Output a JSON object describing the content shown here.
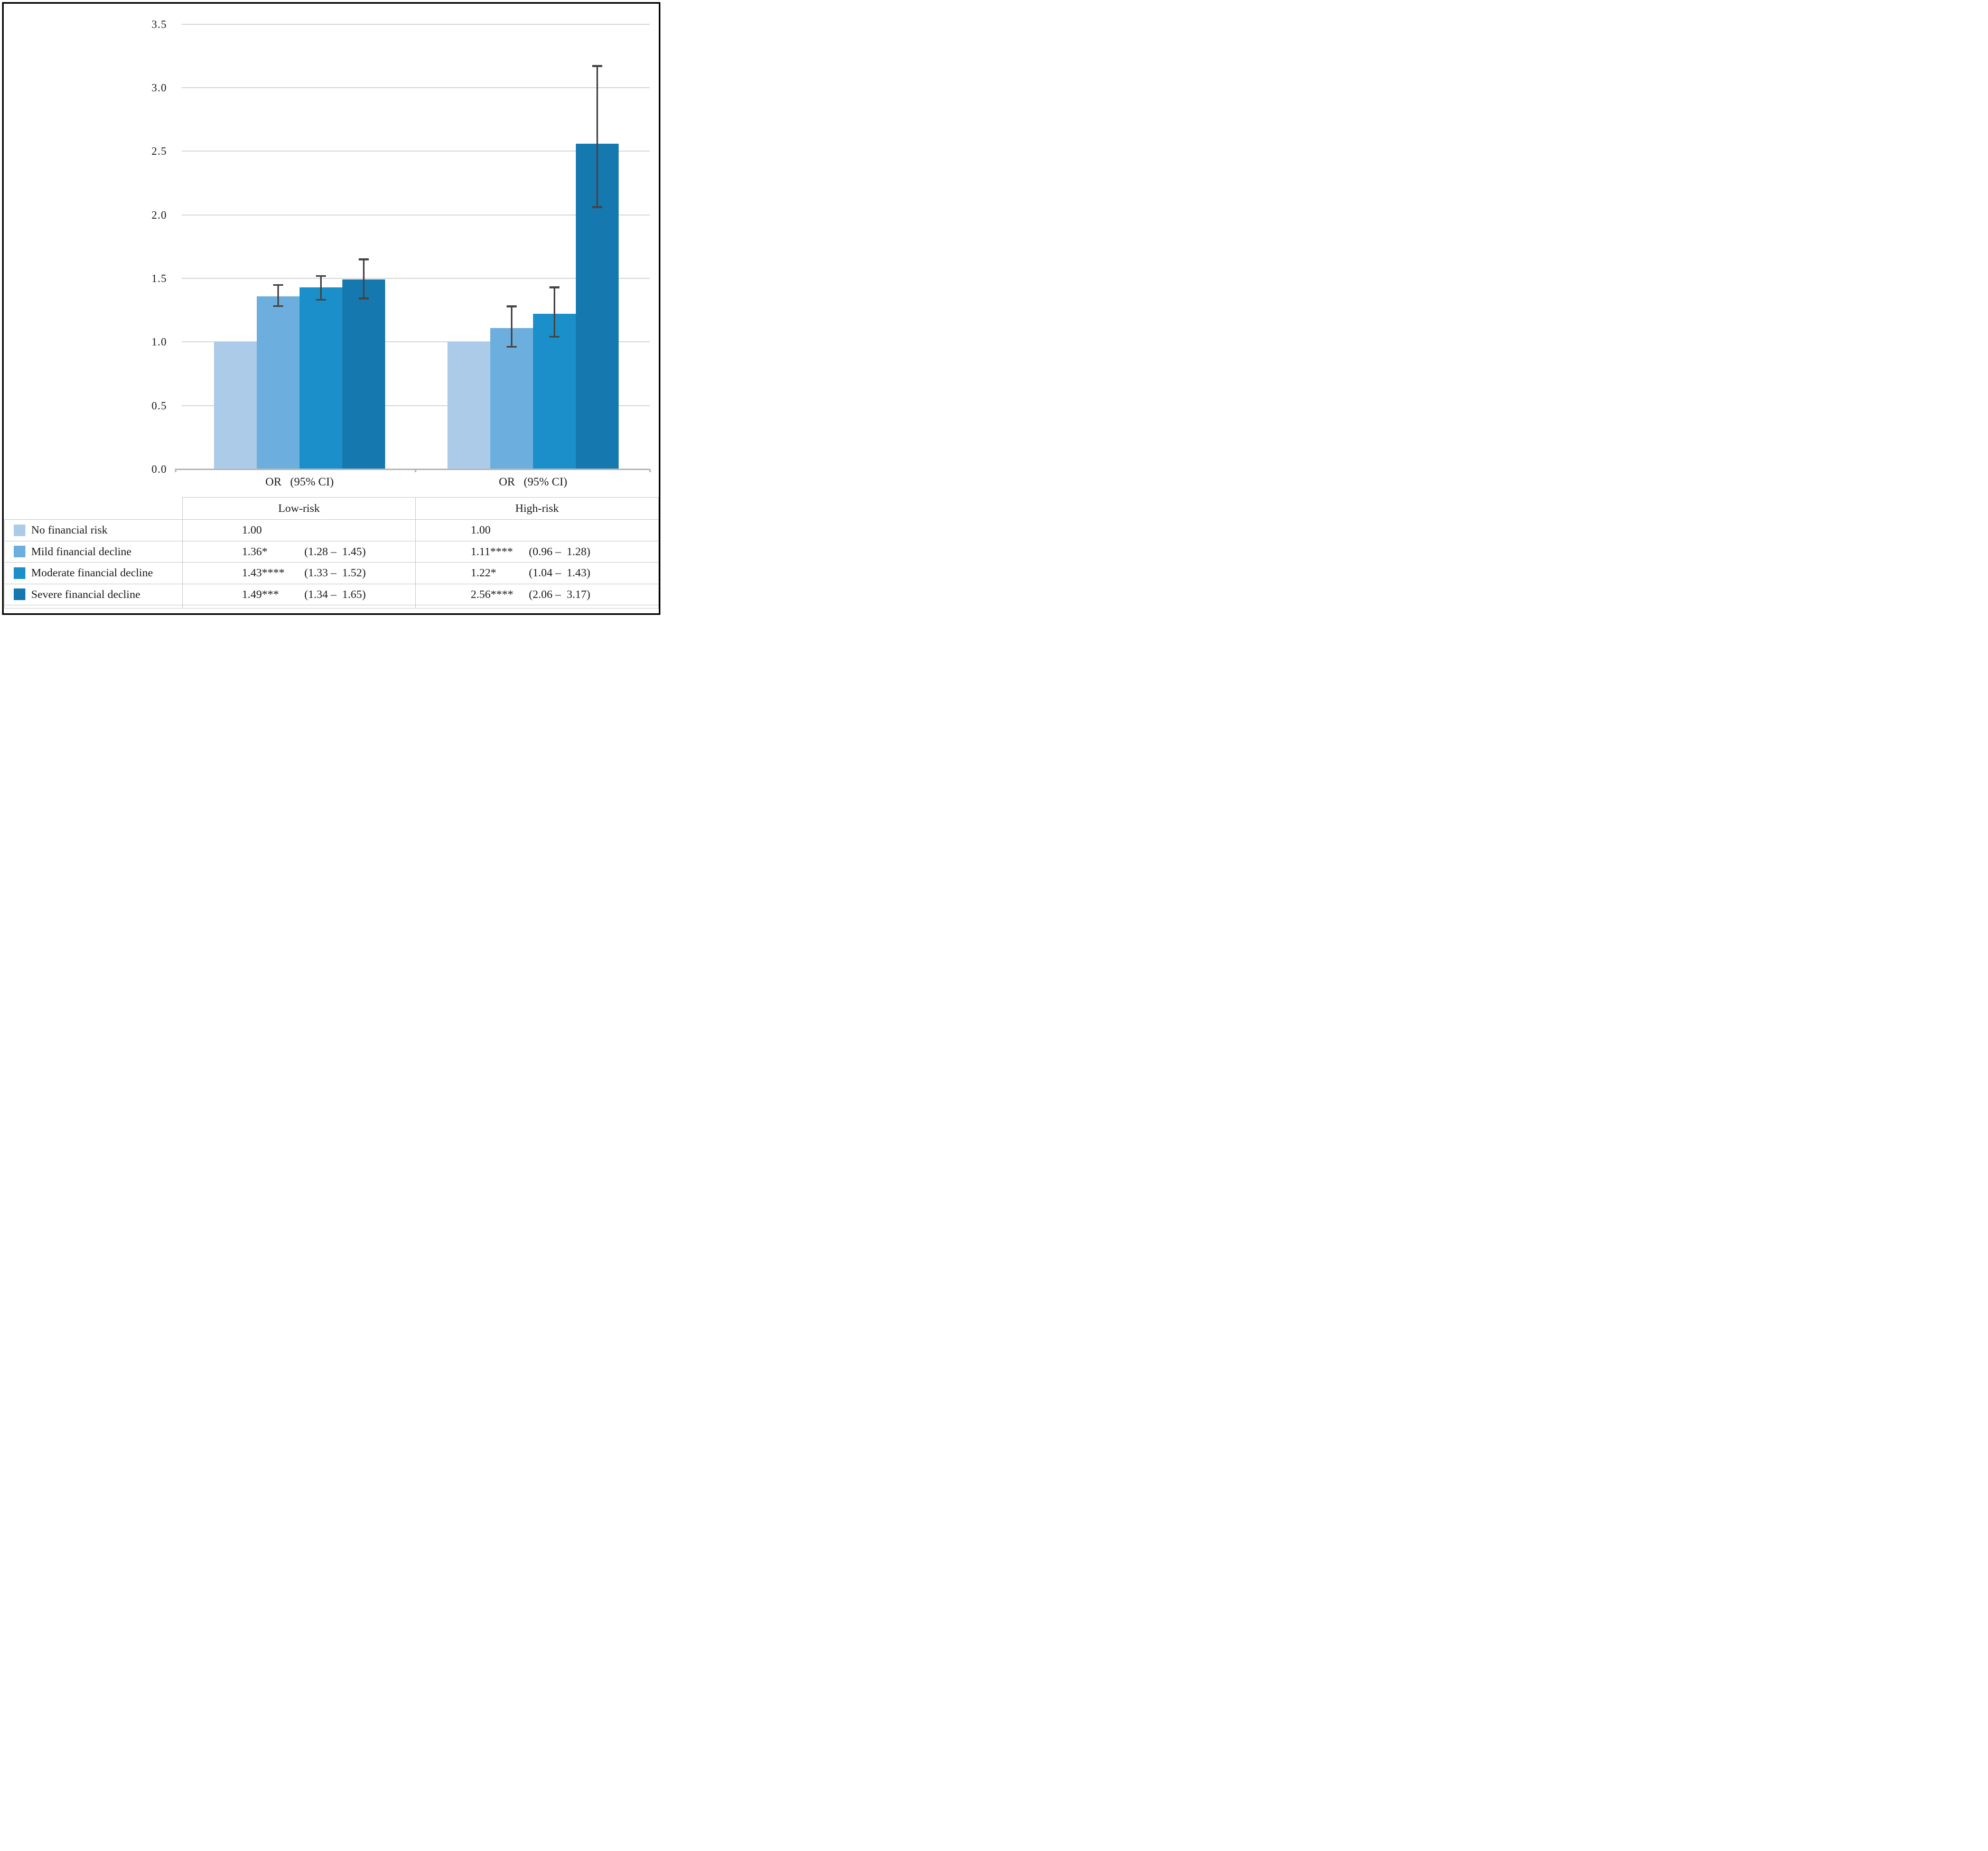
{
  "chart_data": {
    "type": "bar",
    "title": "",
    "categories": [
      "Low-risk",
      "High-risk"
    ],
    "or_ci_label": "OR   (95% CI)",
    "series": [
      {
        "name": "No financial risk",
        "color": "#abcbe8",
        "values": [
          1.0,
          1.0
        ],
        "ci": [
          null,
          null
        ]
      },
      {
        "name": "Mild financial decline",
        "color": "#6caedd",
        "values": [
          1.36,
          1.11
        ],
        "ci": [
          [
            1.28,
            1.45
          ],
          [
            0.96,
            1.28
          ]
        ]
      },
      {
        "name": "Moderate financial decline",
        "color": "#1b8fca",
        "values": [
          1.43,
          1.22
        ],
        "ci": [
          [
            1.33,
            1.52
          ],
          [
            1.04,
            1.43
          ]
        ]
      },
      {
        "name": "Severe financial decline",
        "color": "#1578ae",
        "values": [
          1.49,
          2.56
        ],
        "ci": [
          [
            1.34,
            1.65
          ],
          [
            2.06,
            3.17
          ]
        ]
      }
    ],
    "ylim": [
      0.0,
      3.5
    ],
    "ytick_labels": [
      "0.0",
      "0.5",
      "1.0",
      "1.5",
      "2.0",
      "2.5",
      "3.0",
      "3.5"
    ],
    "grid": true,
    "legend_position": "table-left-column",
    "gridline_color": "#d9d9d9",
    "axis_line_color": "#b9b9b9",
    "error_bar_color": "#454545"
  },
  "table": {
    "group_header_row": [
      "Low-risk",
      "High-risk"
    ],
    "rows": [
      {
        "label": "No financial risk",
        "or_low": "1.00",
        "ci_low": "",
        "or_high": "1.00",
        "ci_high": ""
      },
      {
        "label": "Mild financial decline",
        "or_low": "1.36*",
        "ci_low": "(1.28 –  1.45)",
        "or_high": "1.11****",
        "ci_high": "(0.96 –  1.28)"
      },
      {
        "label": "Moderate financial decline",
        "or_low": "1.43****",
        "ci_low": "(1.33 –  1.52)",
        "or_high": "1.22*",
        "ci_high": "(1.04 –  1.43)"
      },
      {
        "label": "Severe financial decline",
        "or_low": "1.49***",
        "ci_low": "(1.34 –  1.65)",
        "or_high": "2.56****",
        "ci_high": "(2.06 –  3.17)"
      }
    ]
  }
}
